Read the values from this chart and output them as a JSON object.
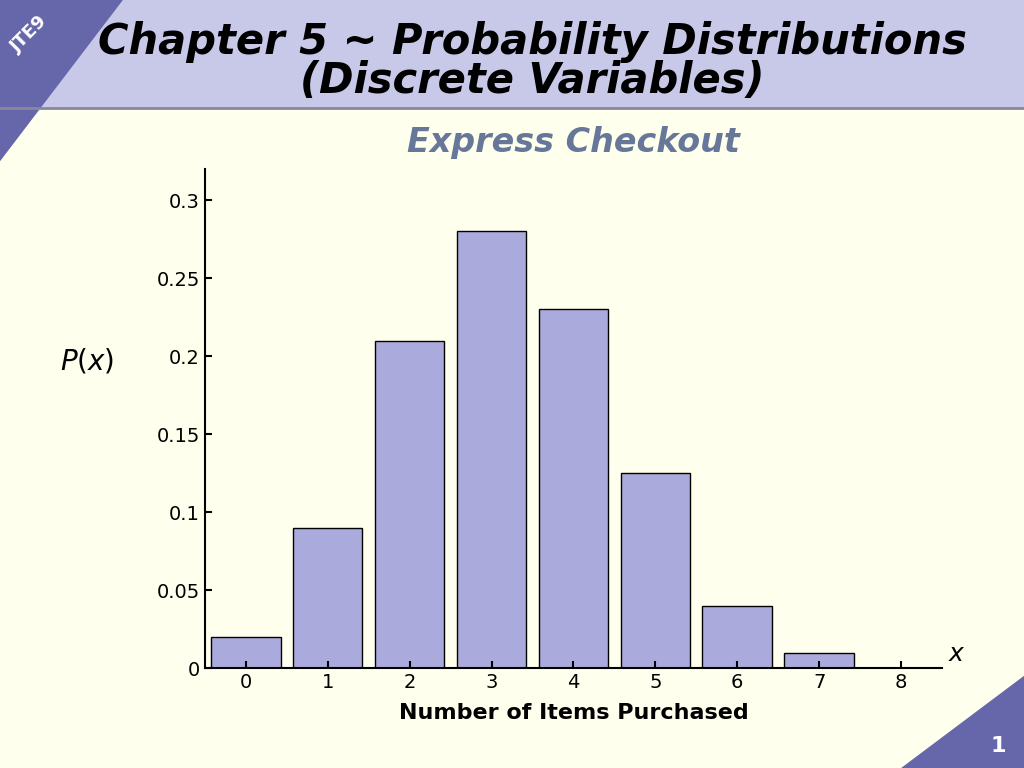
{
  "title_line1": "Chapter 5 ~ Probability Distributions",
  "title_line2": "(Discrete Variables)",
  "chart_title": "Express Checkout",
  "xlabel": "Number of Items Purchased",
  "x_label_symbol": "x",
  "categories": [
    0,
    1,
    2,
    3,
    4,
    5,
    6,
    7
  ],
  "values": [
    0.02,
    0.09,
    0.21,
    0.28,
    0.23,
    0.125,
    0.04,
    0.01
  ],
  "bar_color": "#aaaadd",
  "bar_edge_color": "#000000",
  "ylim": [
    0,
    0.32
  ],
  "yticks": [
    0,
    0.05,
    0.1,
    0.15,
    0.2,
    0.25,
    0.3
  ],
  "xticks": [
    0,
    1,
    2,
    3,
    4,
    5,
    6,
    7,
    8
  ],
  "header_bg_color": "#c8c8e8",
  "header_dark_color": "#6666aa",
  "slide_bg_color": "#ffffee",
  "title_color": "#000000",
  "chart_title_color": "#667799",
  "xlabel_color": "#000000",
  "tick_fontsize": 14,
  "ylabel_fontsize": 20,
  "xlabel_fontsize": 16,
  "chart_title_fontsize": 24,
  "header_fontsize": 30,
  "page_number": "1"
}
